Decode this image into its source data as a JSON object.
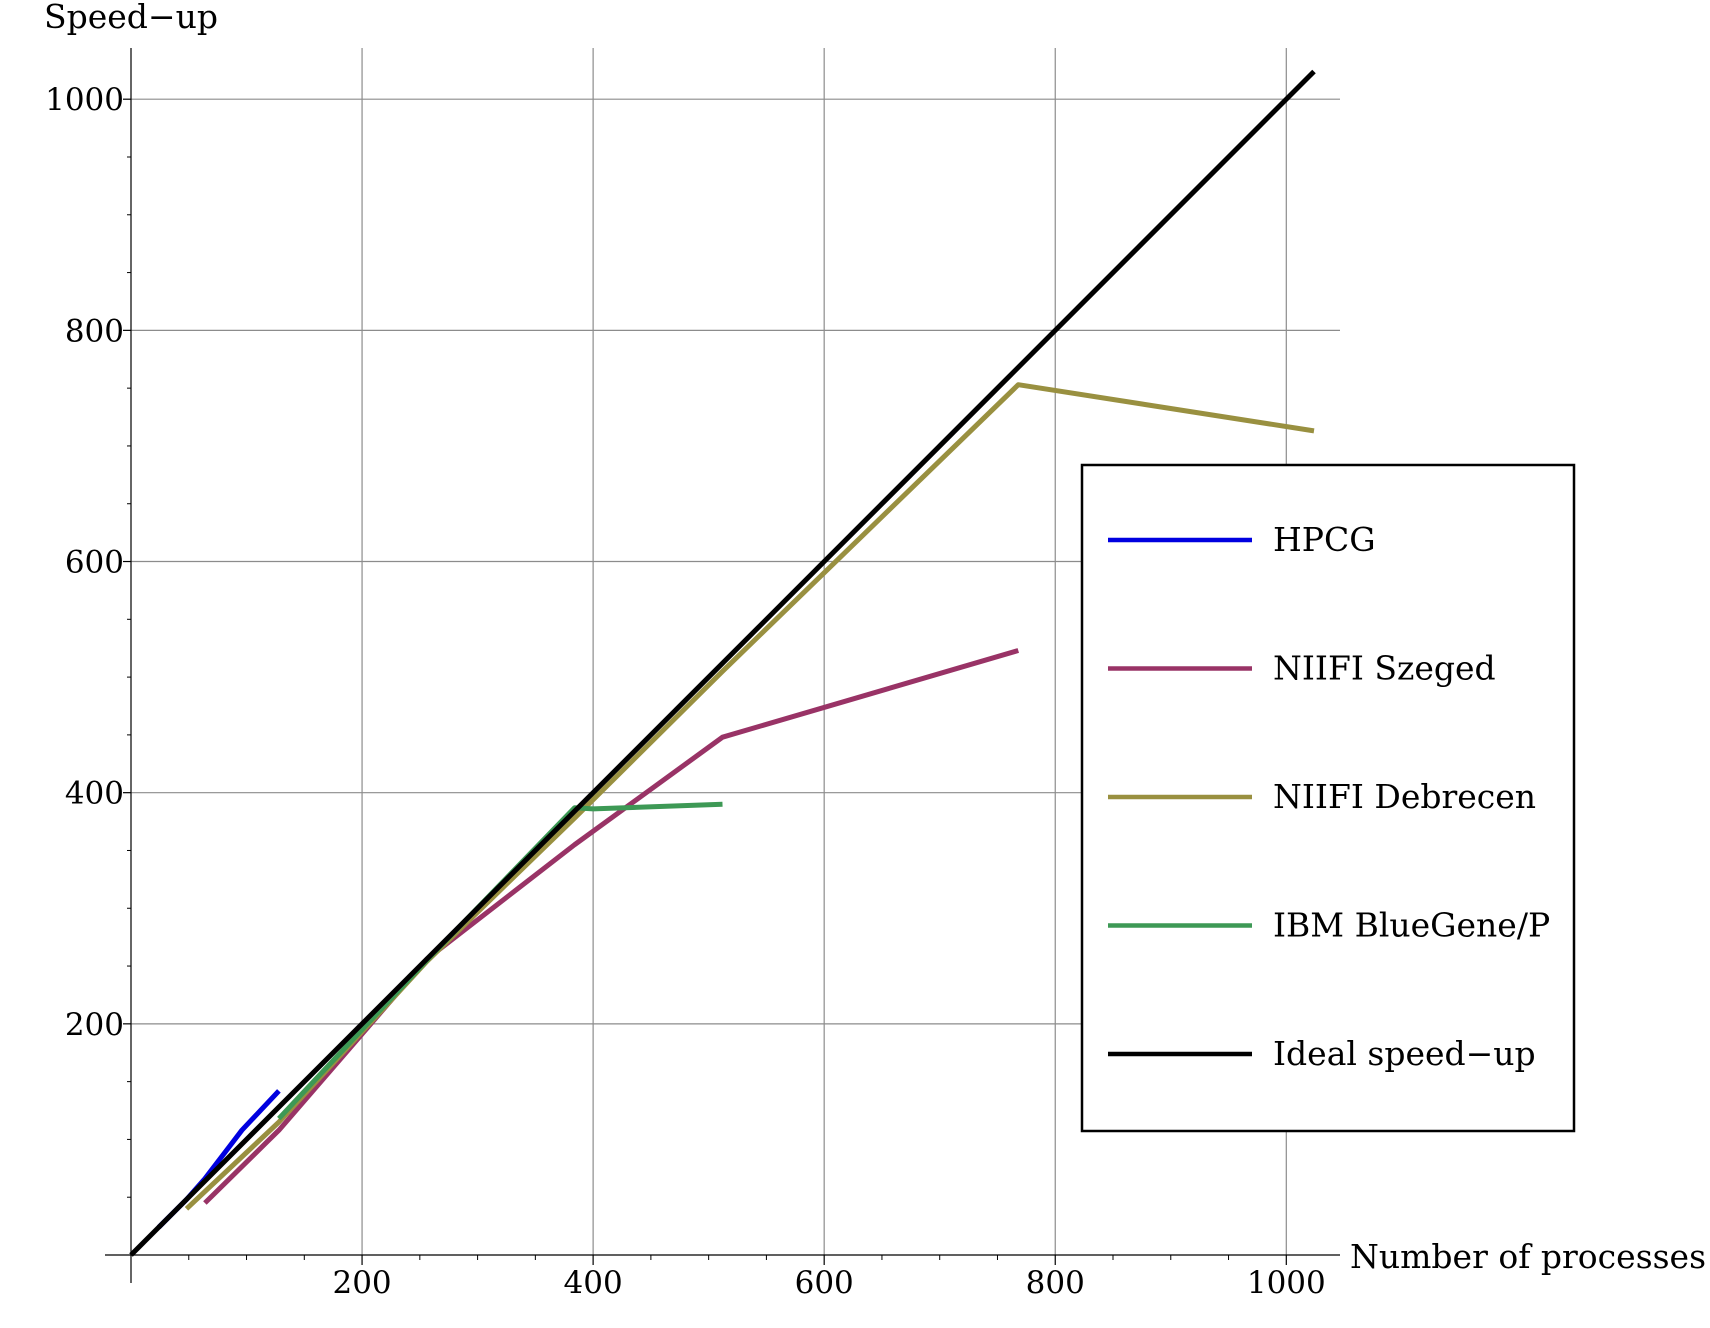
{
  "chart_data": {
    "type": "line",
    "title": "",
    "xlabel": "Number of processes",
    "ylabel": "Speed−up",
    "xlim": [
      0,
      1050
    ],
    "ylim": [
      0,
      1045
    ],
    "x_ticks": [
      200,
      400,
      600,
      800,
      1000
    ],
    "y_ticks": [
      200,
      400,
      600,
      800,
      1000
    ],
    "x_tick_labels": [
      "200",
      "400",
      "600",
      "800",
      "1000"
    ],
    "y_tick_labels": [
      "200",
      "400",
      "600",
      "800",
      "1000"
    ],
    "grid": true,
    "legend_position": "center-right",
    "series": [
      {
        "name": "HPCG",
        "color": "#0000e0",
        "points": [
          [
            24,
            24
          ],
          [
            48,
            48
          ],
          [
            64,
            66
          ],
          [
            96,
            108
          ],
          [
            128,
            142
          ]
        ]
      },
      {
        "name": "NIIFI Szeged",
        "color": "#993366",
        "points": [
          [
            64,
            45
          ],
          [
            128,
            108
          ],
          [
            256,
            256
          ],
          [
            384,
            355
          ],
          [
            512,
            448
          ],
          [
            768,
            523
          ]
        ]
      },
      {
        "name": "NIIFI Debrecen",
        "color": "#999040",
        "points": [
          [
            48,
            40
          ],
          [
            128,
            115
          ],
          [
            256,
            254
          ],
          [
            384,
            378
          ],
          [
            512,
            505
          ],
          [
            768,
            753
          ],
          [
            1024,
            713
          ]
        ]
      },
      {
        "name": "IBM BlueGene/P",
        "color": "#3d9955",
        "points": [
          [
            128,
            118
          ],
          [
            256,
            255
          ],
          [
            384,
            387
          ],
          [
            400,
            386
          ],
          [
            512,
            390
          ]
        ]
      },
      {
        "name": "Ideal speed−up",
        "color": "#000000",
        "points": [
          [
            0,
            0
          ],
          [
            1024,
            1024
          ]
        ]
      }
    ]
  }
}
